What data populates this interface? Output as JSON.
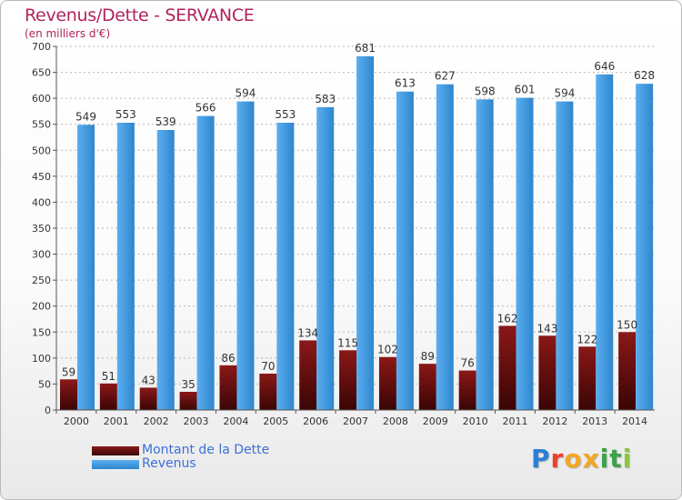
{
  "header": {
    "title": "Revenus/Dette - SERVANCE",
    "subtitle": "(en milliers d'€)"
  },
  "legend": {
    "items": [
      {
        "label": "Montant de la Dette",
        "color": "#6b0d0d"
      },
      {
        "label": "Revenus",
        "color": "#4aa3e8"
      }
    ]
  },
  "logo": {
    "text": "Proxiti",
    "colors": [
      "#2b7fd6",
      "#e8422d",
      "#f5a623",
      "#f5a623",
      "#3aa34a",
      "#3aa34a",
      "#8cc63f"
    ]
  },
  "colors": {
    "debt_top": "#8b1818",
    "debt_bottom": "#3a0505",
    "rev_top": "#5aaef0",
    "rev_bottom": "#2f86cc",
    "grid": "#b8b8b8",
    "axis_text": "#333333"
  },
  "chart_data": {
    "type": "bar",
    "title": "Revenus/Dette - SERVANCE",
    "ylabel": "(en milliers d'€)",
    "xlabel": "",
    "categories": [
      "2000",
      "2001",
      "2002",
      "2003",
      "2004",
      "2005",
      "2006",
      "2007",
      "2008",
      "2009",
      "2010",
      "2011",
      "2012",
      "2013",
      "2014"
    ],
    "series": [
      {
        "name": "Montant de la Dette",
        "values": [
          59,
          51,
          43,
          35,
          86,
          70,
          134,
          115,
          102,
          89,
          76,
          162,
          143,
          122,
          150
        ]
      },
      {
        "name": "Revenus",
        "values": [
          549,
          553,
          539,
          566,
          594,
          553,
          583,
          681,
          613,
          627,
          598,
          601,
          594,
          646,
          628
        ]
      }
    ],
    "ylim": [
      0,
      700
    ],
    "yticks": [
      0,
      50,
      100,
      150,
      200,
      250,
      300,
      350,
      400,
      450,
      500,
      550,
      600,
      650,
      700
    ],
    "grid": true,
    "legend_position": "bottom-left"
  }
}
